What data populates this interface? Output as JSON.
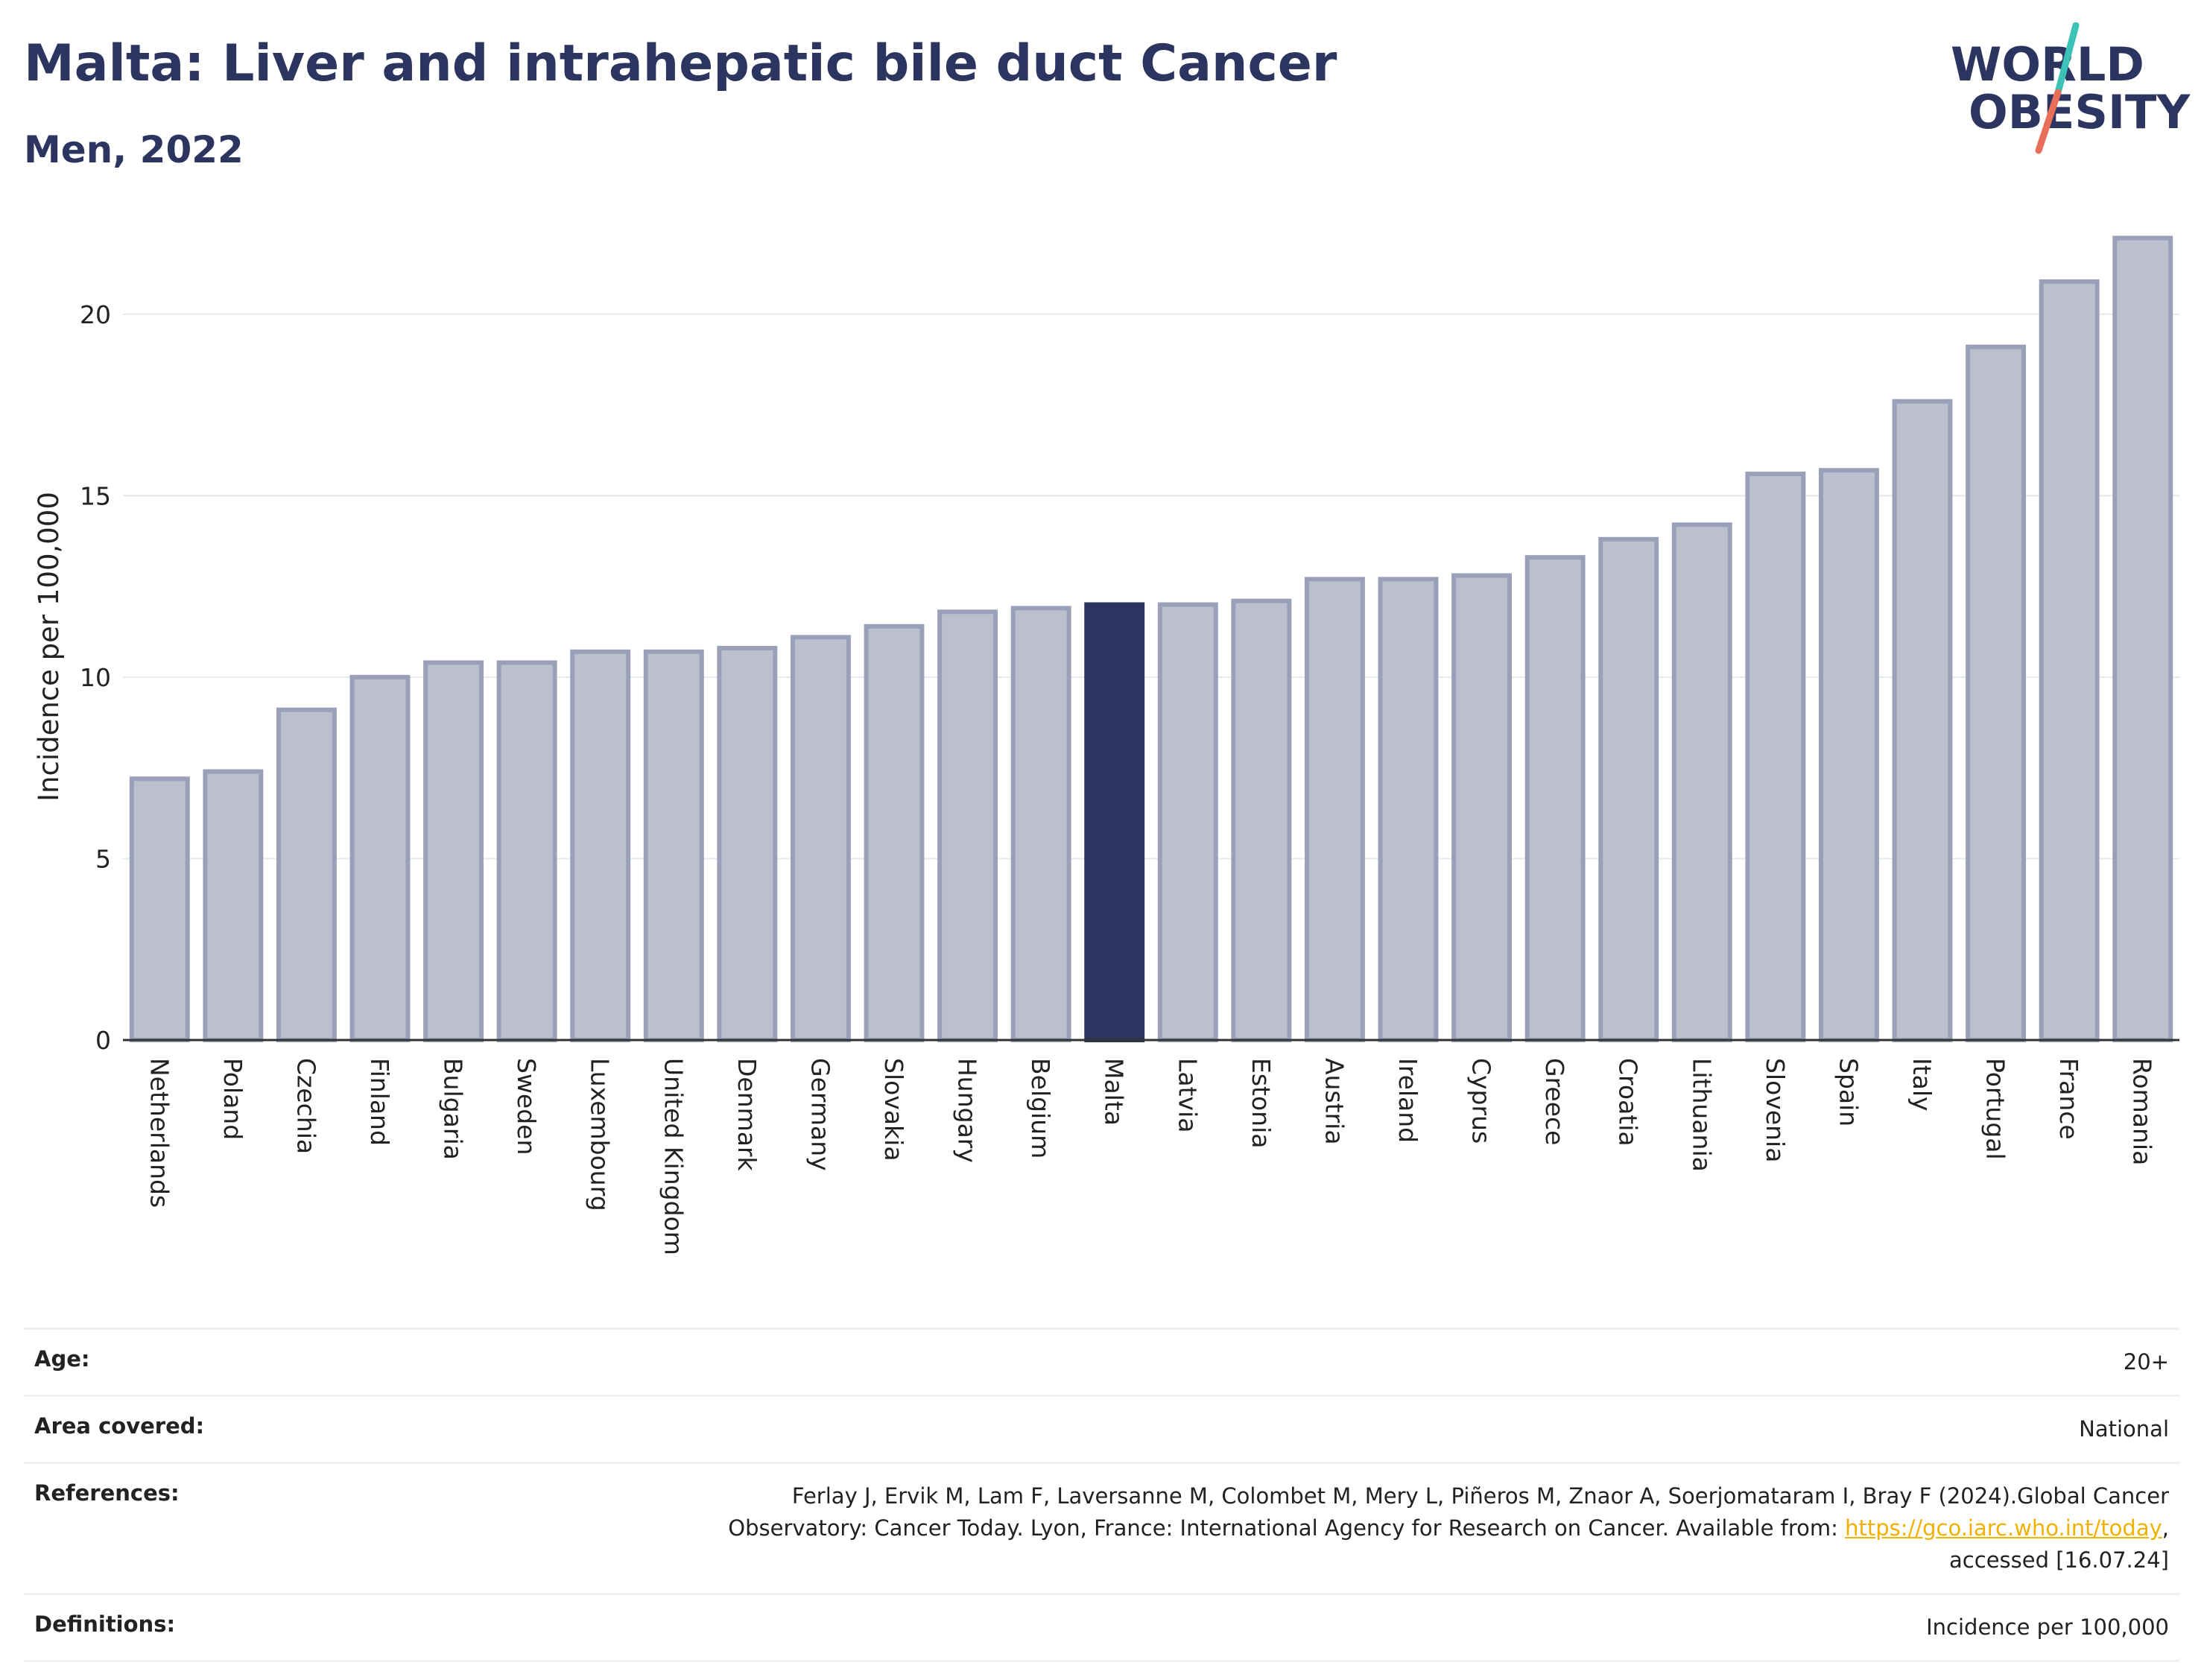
{
  "header": {
    "title": "Malta: Liver and intrahepatic bile duct Cancer",
    "subtitle": "Men, 2022"
  },
  "logo": {
    "line1": "WORLD",
    "line2": "OBESITY",
    "text_color": "#2b3560",
    "slash_colors": [
      "#3cc2b6",
      "#e8705a"
    ]
  },
  "chart_data": {
    "type": "bar",
    "title": "Malta: Liver and intrahepatic bile duct Cancer",
    "subtitle": "Men, 2022",
    "xlabel": "",
    "ylabel": "Incidence per 100,000",
    "ylim": [
      0,
      22.5
    ],
    "yticks": [
      0,
      5,
      10,
      15,
      20
    ],
    "grid": true,
    "highlight": "Malta",
    "colors": {
      "bar": "#bcc0ce",
      "bar_edge": "#9aa0b8",
      "highlight": "#2b3560"
    },
    "categories": [
      "Netherlands",
      "Poland",
      "Czechia",
      "Finland",
      "Bulgaria",
      "Sweden",
      "Luxembourg",
      "United Kingdom",
      "Denmark",
      "Germany",
      "Slovakia",
      "Hungary",
      "Belgium",
      "Malta",
      "Latvia",
      "Estonia",
      "Austria",
      "Ireland",
      "Cyprus",
      "Greece",
      "Croatia",
      "Lithuania",
      "Slovenia",
      "Spain",
      "Italy",
      "Portugal",
      "France",
      "Romania"
    ],
    "values": [
      7.2,
      7.4,
      9.1,
      10.0,
      10.4,
      10.4,
      10.7,
      10.7,
      10.8,
      11.1,
      11.4,
      11.8,
      11.9,
      12.0,
      12.0,
      12.1,
      12.7,
      12.7,
      12.8,
      13.3,
      13.8,
      14.2,
      15.6,
      15.7,
      17.6,
      19.1,
      20.9,
      22.1
    ]
  },
  "meta": {
    "age_label": "Age:",
    "age_value": "20+",
    "area_label": "Area covered:",
    "area_value": "National",
    "references_label": "References:",
    "references_line1": "Ferlay J, Ervik M, Lam F, Laversanne M, Colombet M, Mery L, Piñeros M, Znaor A, Soerjomataram I, Bray F (2024).Global Cancer",
    "references_line2": "Observatory: Cancer Today. Lyon, France: International Agency for Research on Cancer. Available from: ",
    "references_link": "https://gco.iarc.who.int/today",
    "references_line2_end": ",",
    "references_line3": "accessed [16.07.24]",
    "definitions_label": "Definitions:",
    "definitions_value": "Incidence per 100,000"
  }
}
